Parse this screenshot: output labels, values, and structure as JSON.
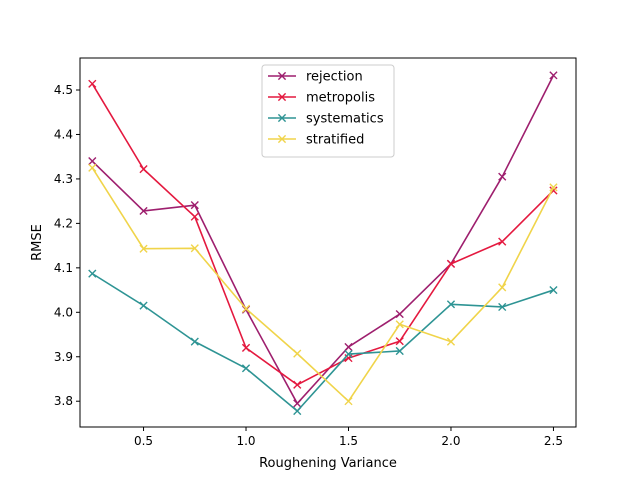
{
  "chart_data": {
    "type": "line",
    "title": "",
    "xlabel": "Roughening Variance",
    "ylabel": "RMSE",
    "xlim": [
      0.19,
      2.61
    ],
    "ylim": [
      3.742,
      4.572
    ],
    "xticks": [
      0.5,
      1.0,
      1.5,
      2.0,
      2.5
    ],
    "xtick_labels": [
      "0.5",
      "1.0",
      "1.5",
      "2.0",
      "2.5"
    ],
    "yticks": [
      3.8,
      3.9,
      4.0,
      4.1,
      4.2,
      4.3,
      4.4,
      4.5
    ],
    "ytick_labels": [
      "3.8",
      "3.9",
      "4.0",
      "4.1",
      "4.2",
      "4.3",
      "4.4",
      "4.5"
    ],
    "grid": false,
    "legend_position": "upper-center",
    "marker": "x",
    "x": [
      0.25,
      0.5,
      0.75,
      1.0,
      1.25,
      1.5,
      1.75,
      2.0,
      2.25,
      2.5
    ],
    "series": [
      {
        "name": "rejection",
        "color": "#9e1f6e",
        "values": [
          4.34,
          4.228,
          4.241,
          4.006,
          3.795,
          3.922,
          3.996,
          4.109,
          4.305,
          4.533
        ]
      },
      {
        "name": "metropolis",
        "color": "#e4193f",
        "values": [
          4.514,
          4.322,
          4.215,
          3.92,
          3.837,
          3.897,
          3.935,
          4.109,
          4.159,
          4.274
        ]
      },
      {
        "name": "systematics",
        "color": "#2e9494",
        "values": [
          4.087,
          4.015,
          3.934,
          3.874,
          3.778,
          3.906,
          3.913,
          4.018,
          4.012,
          4.05
        ]
      },
      {
        "name": "stratified",
        "color": "#f0d44a",
        "values": [
          4.325,
          4.143,
          4.144,
          4.008,
          3.907,
          3.8,
          3.973,
          3.934,
          4.056,
          4.281
        ]
      }
    ]
  }
}
